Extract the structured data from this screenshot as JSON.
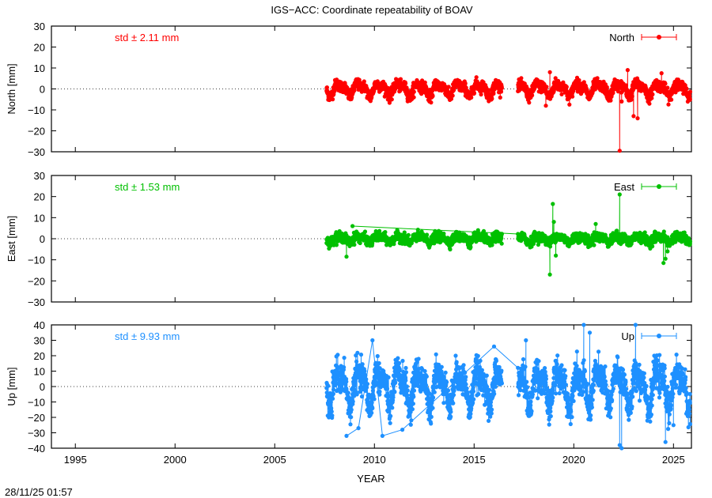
{
  "page": {
    "title": "IGS−ACC: Coordinate repeatability of BOAV",
    "timestamp": "28/11/25 01:57"
  },
  "chart_data": [
    {
      "type": "scatter",
      "title": "IGS−ACC: Coordinate repeatability of BOAV",
      "ylabel": "North [mm]",
      "xlabel": "",
      "xlim": [
        1993.8,
        2025.9
      ],
      "ylim": [
        -30,
        30
      ],
      "yticks": [
        30,
        20,
        10,
        0,
        -10,
        -20,
        -30
      ],
      "std_label": "std ± 2.11 mm",
      "color": "#ff0000",
      "series": [
        {
          "name": "North",
          "start": 2007.6,
          "end": 2025.85,
          "amp_annual": 2.5,
          "noise": 1.3,
          "gaps": [
            [
              2016.4,
              2017.2
            ]
          ],
          "outliers": [
            [
              2018.6,
              -8
            ],
            [
              2018.8,
              8
            ],
            [
              2022.3,
              -29.5
            ],
            [
              2022.4,
              -6
            ],
            [
              2022.7,
              9
            ],
            [
              2023.0,
              -13
            ],
            [
              2023.2,
              -14
            ],
            [
              2024.4,
              7.5
            ]
          ]
        }
      ]
    },
    {
      "type": "scatter",
      "ylabel": "East [mm]",
      "xlabel": "",
      "xlim": [
        1993.8,
        2025.9
      ],
      "ylim": [
        -30,
        30
      ],
      "yticks": [
        30,
        20,
        10,
        0,
        -10,
        -20,
        -30
      ],
      "std_label": "std ± 1.53 mm",
      "color": "#00c000",
      "series": [
        {
          "name": "East",
          "start": 2007.6,
          "end": 2025.85,
          "amp_annual": 1.2,
          "noise": 1.1,
          "gaps": [
            [
              2016.4,
              2017.2
            ]
          ],
          "outliers": [
            [
              2008.6,
              -8.5
            ],
            [
              2008.9,
              6
            ],
            [
              2018.8,
              -17
            ],
            [
              2018.95,
              16.5
            ],
            [
              2019.0,
              8
            ],
            [
              2019.1,
              -8
            ],
            [
              2021.1,
              7
            ],
            [
              2022.3,
              21
            ],
            [
              2024.5,
              -11.5
            ],
            [
              2024.6,
              -9.5
            ],
            [
              2024.7,
              -6
            ]
          ]
        }
      ]
    },
    {
      "type": "scatter",
      "ylabel": "Up [mm]",
      "xlabel": "YEAR",
      "xlim": [
        1993.8,
        2025.9
      ],
      "ylim": [
        -40,
        40
      ],
      "yticks": [
        40,
        30,
        20,
        10,
        0,
        -10,
        -20,
        -30,
        -40
      ],
      "xticks": [
        1995,
        2000,
        2005,
        2010,
        2015,
        2020,
        2025
      ],
      "std_label": "std ± 9.93 mm",
      "color": "#1e90ff",
      "series": [
        {
          "name": "Up",
          "start": 2007.6,
          "end": 2025.85,
          "amp_annual": 10,
          "noise": 5,
          "gaps": [
            [
              2016.4,
              2017.2
            ]
          ],
          "outliers": [
            [
              2008.6,
              -32
            ],
            [
              2009.2,
              -27
            ],
            [
              2009.9,
              30
            ],
            [
              2010.4,
              -32
            ],
            [
              2011.4,
              -28
            ],
            [
              2016.0,
              26
            ],
            [
              2017.6,
              30
            ],
            [
              2020.5,
              40
            ],
            [
              2020.8,
              35
            ],
            [
              2022.3,
              -38
            ],
            [
              2022.4,
              -40
            ],
            [
              2023.1,
              40
            ],
            [
              2024.6,
              -36
            ],
            [
              2025.0,
              -25
            ]
          ]
        }
      ]
    }
  ]
}
